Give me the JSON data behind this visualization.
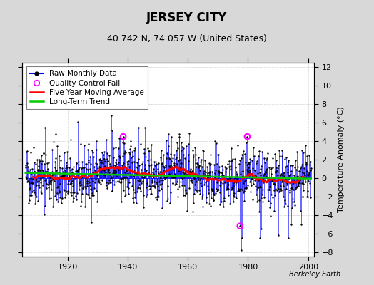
{
  "title": "JERSEY CITY",
  "subtitle": "40.742 N, 74.057 W (United States)",
  "ylabel": "Temperature Anomaly (°C)",
  "watermark": "Berkeley Earth",
  "ylim": [
    -8.5,
    12.5
  ],
  "xlim": [
    1905,
    2002
  ],
  "yticks": [
    -8,
    -6,
    -4,
    -2,
    0,
    2,
    4,
    6,
    8,
    10,
    12
  ],
  "xticks": [
    1920,
    1940,
    1960,
    1980,
    2000
  ],
  "year_start": 1906,
  "year_end": 2000,
  "seed": 42,
  "raw_color": "#0000FF",
  "raw_lw": 0.7,
  "dot_color": "#000000",
  "dot_size": 3,
  "mavg_color": "#FF0000",
  "mavg_lw": 1.8,
  "trend_color": "#00CC00",
  "trend_lw": 1.8,
  "qc_color": "#FF00FF",
  "qc_size": 7,
  "bg_color": "#D8D8D8",
  "plot_bg": "#FFFFFF",
  "grid_color": "#C8C8C8",
  "title_fontsize": 12,
  "subtitle_fontsize": 9,
  "ylabel_fontsize": 8,
  "tick_fontsize": 8,
  "legend_fontsize": 7.5
}
